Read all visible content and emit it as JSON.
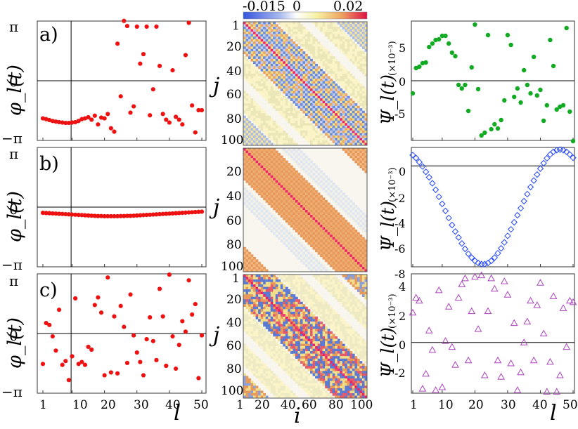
{
  "panel_labels": [
    "a)",
    "b)",
    "c)"
  ],
  "left_column": {
    "ylabel": "φ_l(t)",
    "yticks": [
      "π",
      "0",
      "−π"
    ],
    "xlabel": "l",
    "xticks": [
      "1",
      "10",
      "20",
      "30",
      "40",
      "50"
    ]
  },
  "middle_column": {
    "ylabel": "j",
    "xlabel": "i",
    "ticks": [
      "1",
      "20",
      "40",
      "60",
      "80",
      "100"
    ],
    "colorbar_labels": [
      "-0.015",
      "0",
      "0.02"
    ]
  },
  "right_column": {
    "ylabel": "Ψ_l(t)",
    "scale_note": "(×10⁻³)",
    "xlabel": "l",
    "xticks": [
      "1",
      "10",
      "20",
      "30",
      "40",
      "50"
    ],
    "yticks_top": [
      "5",
      "0",
      "-5"
    ],
    "yticks_mid": [
      "0",
      "-2",
      "-4",
      "-6",
      "-8"
    ],
    "yticks_bot": [
      "4",
      "2",
      "0",
      "-2"
    ]
  },
  "colors": {
    "phi_marker": "#ee1111",
    "psi_top": "#11aa22",
    "psi_mid": "#2244ff",
    "psi_bot": "#aa44bb",
    "diag": "#ee2266",
    "band_orange": "#e8a060",
    "band_blue": "#a8b8e0",
    "pale_yellow": "#fbf4c8"
  },
  "chart_data": [
    {
      "type": "scatter",
      "panel": "a) left",
      "ylim": [
        -3.1416,
        3.1416
      ],
      "xlim": [
        1,
        50
      ],
      "x": [
        1,
        2,
        3,
        4,
        5,
        6,
        7,
        8,
        9,
        10,
        11,
        12,
        13,
        14,
        15,
        16,
        17,
        18,
        19,
        20,
        21,
        22,
        23,
        24,
        25,
        26,
        27,
        28,
        29,
        30,
        31,
        32,
        33,
        34,
        35,
        36,
        37,
        38,
        39,
        40,
        41,
        42,
        43,
        44,
        45,
        46,
        47,
        48,
        49,
        50
      ],
      "values": [
        -1.98,
        -2.02,
        -2.07,
        -2.12,
        -2.15,
        -2.18,
        -2.2,
        -2.22,
        -2.22,
        -2.2,
        -2.18,
        -2.12,
        -2.02,
        -1.98,
        -1.92,
        -2.05,
        -1.84,
        -2.3,
        -1.94,
        -1.98,
        -1.75,
        -2.5,
        -2.68,
        1.95,
        -0.82,
        3.15,
        2.88,
        -1.68,
        -1.35,
        2.85,
        0.9,
        1.4,
        2.85,
        -1.82,
        -0.45,
        2.85,
        0.78,
        -1.75,
        -2.05,
        -2.2,
        0.55,
        -1.9,
        -2.05,
        -2.3,
        1.35,
        3.05,
        -1.3,
        -2.72,
        -1.55,
        -1.55
      ]
    },
    {
      "type": "scatter",
      "panel": "b) left",
      "ylim": [
        -3.1416,
        3.1416
      ],
      "xlim": [
        1,
        50
      ],
      "x": [
        1,
        2,
        3,
        4,
        5,
        6,
        7,
        8,
        9,
        10,
        11,
        12,
        13,
        14,
        15,
        16,
        17,
        18,
        19,
        20,
        21,
        22,
        23,
        24,
        25,
        26,
        27,
        28,
        29,
        30,
        31,
        32,
        33,
        34,
        35,
        36,
        37,
        38,
        39,
        40,
        41,
        42,
        43,
        44,
        45,
        46,
        47,
        48,
        49,
        50
      ],
      "values": [
        -0.3,
        -0.31,
        -0.32,
        -0.33,
        -0.34,
        -0.35,
        -0.36,
        -0.37,
        -0.38,
        -0.39,
        -0.4,
        -0.41,
        -0.42,
        -0.43,
        -0.44,
        -0.45,
        -0.46,
        -0.47,
        -0.47,
        -0.48,
        -0.48,
        -0.48,
        -0.48,
        -0.48,
        -0.47,
        -0.47,
        -0.46,
        -0.46,
        -0.45,
        -0.44,
        -0.43,
        -0.42,
        -0.41,
        -0.4,
        -0.39,
        -0.38,
        -0.37,
        -0.36,
        -0.35,
        -0.34,
        -0.33,
        -0.32,
        -0.31,
        -0.3,
        -0.29,
        -0.28,
        -0.27,
        -0.26,
        -0.25,
        -0.24
      ]
    },
    {
      "type": "scatter",
      "panel": "c) left",
      "ylim": [
        -3.1416,
        3.1416
      ],
      "xlim": [
        1,
        50
      ],
      "x": [
        1,
        2,
        3,
        4,
        5,
        6,
        7,
        8,
        9,
        10,
        11,
        12,
        13,
        14,
        15,
        16,
        17,
        18,
        19,
        20,
        21,
        22,
        23,
        24,
        25,
        26,
        27,
        28,
        29,
        30,
        31,
        32,
        33,
        34,
        35,
        36,
        37,
        38,
        39,
        40,
        41,
        42,
        43,
        44,
        45,
        46,
        47,
        48,
        49,
        50
      ],
      "values": [
        -1.6,
        0.55,
        0.45,
        -0.15,
        -0.9,
        1.25,
        -1.65,
        -1.45,
        -2.45,
        -1.2,
        1.85,
        -1.6,
        -1.5,
        -1.65,
        -0.7,
        -0.85,
        1.5,
        1.9,
        1.1,
        -2.2,
        2.95,
        -2.05,
        0.9,
        -2.1,
        1.45,
        0.35,
        -1.55,
        2.05,
        -0.1,
        -1.0,
        -1.5,
        -2.2,
        -0.3,
        0.85,
        -0.4,
        -1.4,
        2.35,
        0.9,
        -1.7,
        3.1,
        -0.15,
        -1.85,
        -0.6,
        0.65,
        0.1,
        2.8,
        1.0,
        1.55,
        -2.35,
        -0.1
      ]
    },
    {
      "type": "heatmap",
      "panel": "a) middle",
      "xlim": [
        1,
        100
      ],
      "ylim": [
        1,
        100
      ],
      "colorbar": [
        -0.015,
        0,
        0.02
      ],
      "description": "diagonal band of width ~25 with alternating blue/orange checkerboard, red main diagonal, pale yellow stripes at off-diagonal corners"
    },
    {
      "type": "heatmap",
      "panel": "b) middle",
      "xlim": [
        1,
        100
      ],
      "ylim": [
        1,
        100
      ],
      "colorbar": [
        -0.015,
        0,
        0.02
      ],
      "description": "uniform orange diagonal band of width ~25, red main diagonal, orange triangles in corners"
    },
    {
      "type": "heatmap",
      "panel": "c) middle",
      "xlim": [
        1,
        100
      ],
      "ylim": [
        1,
        100
      ],
      "colorbar": [
        -0.015,
        0,
        0.02
      ],
      "description": "noisy diagonal band with blue/orange/red mixture, red main diagonal"
    },
    {
      "type": "scatter",
      "panel": "a) right",
      "ylim": [
        -8.5,
        8.5
      ],
      "xlim": [
        1,
        50
      ],
      "x": [
        1,
        2,
        3,
        4,
        5,
        6,
        7,
        8,
        9,
        10,
        11,
        12,
        13,
        14,
        15,
        16,
        17,
        18,
        19,
        20,
        21,
        22,
        23,
        24,
        25,
        26,
        27,
        28,
        29,
        30,
        31,
        32,
        33,
        34,
        35,
        36,
        37,
        38,
        39,
        40,
        41,
        42,
        43,
        44,
        45,
        46,
        47,
        48,
        49,
        50
      ],
      "values": [
        -1.8,
        1.8,
        2.0,
        2.5,
        2.6,
        4.8,
        5.3,
        5.8,
        5.9,
        6.4,
        6.4,
        5.3,
        4.0,
        3.5,
        -0.6,
        -1.1,
        -0.6,
        -4.3,
        1.9,
        8.0,
        -1.2,
        -7.8,
        -7.4,
        6.5,
        -6.9,
        -6.2,
        -6.8,
        -5.6,
        -2.8,
        6.5,
        5.1,
        -2.3,
        -1.1,
        -3.1,
        1.5,
        -0.6,
        -1.8,
        3.4,
        -2.1,
        -1.3,
        -5.7,
        -3.5,
        5.8,
        2.1,
        -4.1,
        -3.7,
        -3.5,
        7.5,
        -4.4,
        -8.6
      ]
    },
    {
      "type": "scatter",
      "panel": "b) right",
      "ylim": [
        -9.3,
        1.7
      ],
      "xlim": [
        1,
        50
      ],
      "x": [
        1,
        2,
        3,
        4,
        5,
        6,
        7,
        8,
        9,
        10,
        11,
        12,
        13,
        14,
        15,
        16,
        17,
        18,
        19,
        20,
        21,
        22,
        23,
        24,
        25,
        26,
        27,
        28,
        29,
        30,
        31,
        32,
        33,
        34,
        35,
        36,
        37,
        38,
        39,
        40,
        41,
        42,
        43,
        44,
        45,
        46,
        47,
        48,
        49,
        50
      ],
      "values": [
        1.0,
        0.72,
        0.35,
        -0.05,
        -0.55,
        -1.05,
        -1.6,
        -2.2,
        -2.85,
        -3.5,
        -4.15,
        -4.8,
        -5.45,
        -6.05,
        -6.6,
        -7.15,
        -7.65,
        -8.1,
        -8.45,
        -8.75,
        -8.95,
        -9.05,
        -9.05,
        -8.95,
        -8.75,
        -8.45,
        -8.05,
        -7.6,
        -7.05,
        -6.45,
        -5.85,
        -5.2,
        -4.55,
        -3.9,
        -3.25,
        -2.6,
        -1.95,
        -1.35,
        -0.8,
        -0.25,
        0.25,
        0.7,
        1.05,
        1.3,
        1.45,
        1.5,
        1.45,
        1.3,
        1.05,
        0.75
      ]
    },
    {
      "type": "scatter",
      "panel": "c) right",
      "ylim": [
        -3.4,
        4.6
      ],
      "xlim": [
        1,
        50
      ],
      "x": [
        1,
        2,
        3,
        4,
        5,
        6,
        7,
        8,
        9,
        10,
        11,
        12,
        13,
        14,
        15,
        16,
        17,
        18,
        19,
        20,
        21,
        22,
        23,
        24,
        25,
        26,
        27,
        28,
        29,
        30,
        31,
        32,
        33,
        34,
        35,
        36,
        37,
        38,
        39,
        40,
        41,
        42,
        43,
        44,
        45,
        46,
        47,
        48,
        49,
        50
      ],
      "values": [
        2.0,
        3.0,
        2.8,
        -3.1,
        -2.1,
        0.8,
        -0.5,
        -3.2,
        3.5,
        -3.0,
        0.1,
        2.4,
        -0.3,
        -1.5,
        3.0,
        3.9,
        4.3,
        -1.2,
        2.1,
        4.4,
        0.9,
        4.5,
        -2.2,
        2.1,
        4.3,
        3.6,
        -1.2,
        -2.3,
        4.1,
        3.2,
        -1.4,
        1.3,
        -3.2,
        -2.0,
        0.0,
        1.4,
        2.8,
        -1.2,
        2.5,
        4.0,
        0.6,
        -3.3,
        -1.3,
        3.1,
        -3.3,
        -2.2,
        2.3,
        -0.3,
        2.8,
        2.7
      ]
    }
  ]
}
